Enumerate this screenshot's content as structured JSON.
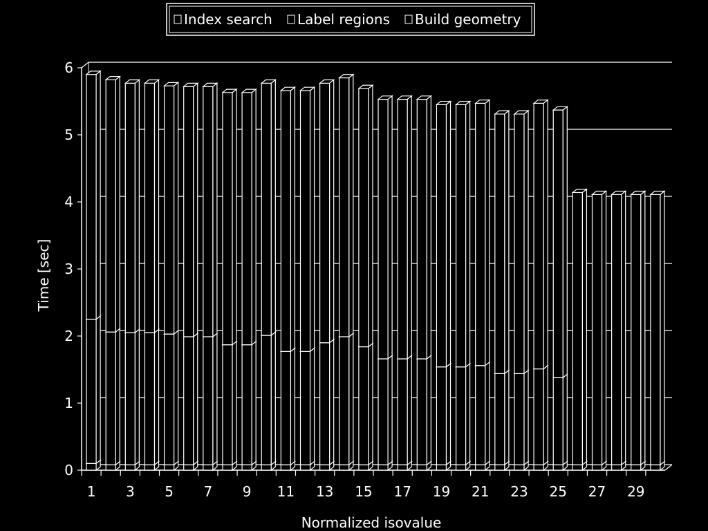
{
  "chart_data": {
    "type": "bar",
    "stacked": true,
    "title": "",
    "xlabel": "Normalized isovalue",
    "ylabel": "Time [sec]",
    "ylim": [
      0,
      6
    ],
    "yticks": [
      0,
      1,
      2,
      3,
      4,
      5,
      6
    ],
    "grid": true,
    "legend_position": "top",
    "categories": [
      "1",
      "2",
      "3",
      "4",
      "5",
      "6",
      "7",
      "8",
      "9",
      "10",
      "11",
      "12",
      "13",
      "14",
      "15",
      "16",
      "17",
      "18",
      "19",
      "20",
      "21",
      "22",
      "23",
      "24",
      "25",
      "26",
      "27",
      "28",
      "29",
      "30"
    ],
    "xtick_labels": [
      "1",
      "3",
      "5",
      "7",
      "9",
      "11",
      "13",
      "15",
      "17",
      "19",
      "21",
      "23",
      "25",
      "27",
      "29"
    ],
    "series": [
      {
        "name": "Index search",
        "values": [
          0.1,
          0.08,
          0.08,
          0.08,
          0.08,
          0.08,
          0.08,
          0.08,
          0.08,
          0.08,
          0.08,
          0.08,
          0.08,
          0.08,
          0.08,
          0.08,
          0.08,
          0.08,
          0.08,
          0.08,
          0.08,
          0.08,
          0.08,
          0.08,
          0.08,
          0.08,
          0.08,
          0.08,
          0.08,
          0.08
        ]
      },
      {
        "name": "Label regions",
        "values": [
          2.15,
          1.98,
          1.97,
          1.97,
          1.95,
          1.91,
          1.91,
          1.79,
          1.79,
          1.93,
          1.69,
          1.69,
          1.82,
          1.91,
          1.76,
          1.58,
          1.58,
          1.58,
          1.46,
          1.46,
          1.48,
          1.36,
          1.36,
          1.43,
          1.3,
          0.0,
          0.0,
          0.0,
          0.0,
          0.0
        ]
      },
      {
        "name": "Build geometry",
        "values": [
          3.65,
          3.76,
          3.72,
          3.72,
          3.7,
          3.73,
          3.73,
          3.76,
          3.76,
          3.76,
          3.89,
          3.89,
          3.87,
          3.86,
          3.85,
          3.87,
          3.87,
          3.87,
          3.91,
          3.91,
          3.91,
          3.87,
          3.87,
          3.96,
          3.99,
          4.06,
          4.03,
          4.03,
          4.03,
          4.03
        ]
      }
    ]
  }
}
